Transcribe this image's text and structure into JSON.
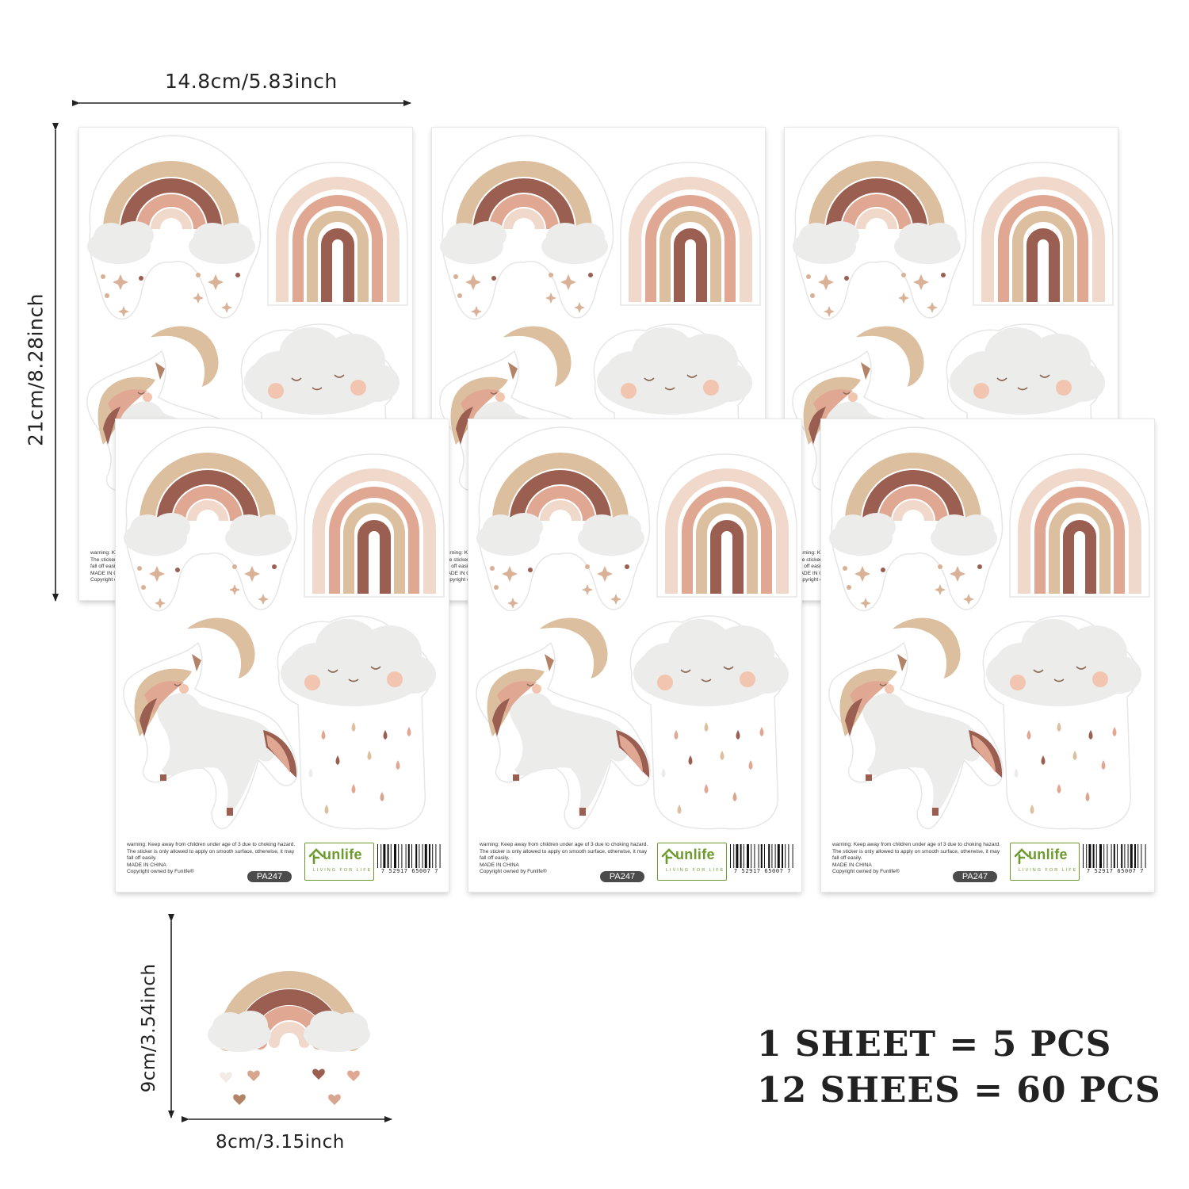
{
  "dimensions": {
    "sheet_width": "14.8cm/5.83inch",
    "sheet_height": "21cm/8.28inch",
    "piece_height": "9cm/3.54inch",
    "piece_width": "8cm/3.15inch"
  },
  "sheet_footer": {
    "warning_lines": [
      "warning: Keep away from children under age of 3 due to choking",
      "hazard. The sticker is only allowed to apply on smooth surface,",
      "otherwise, it may fall off easily."
    ],
    "origin": "MADE IN CHINA",
    "copyright": "Copyright owned by Funlife®",
    "product_code": "PA247",
    "brand_name": "unlife",
    "brand_tagline": "LIVING FOR LIFE",
    "barcode_digits": "7 52917 65007 7"
  },
  "counts": {
    "line1": "1 SHEET = 5 PCS",
    "line2": "12 SHEES = 60 PCS"
  },
  "colors": {
    "rainbow_tan": "#dcbf9e",
    "rainbow_brown": "#9b5f52",
    "rainbow_pink": "#e0a793",
    "rainbow_blush": "#f0d8cb",
    "cloud_grey": "#ececea",
    "brand_green": "#6c9a2e"
  }
}
